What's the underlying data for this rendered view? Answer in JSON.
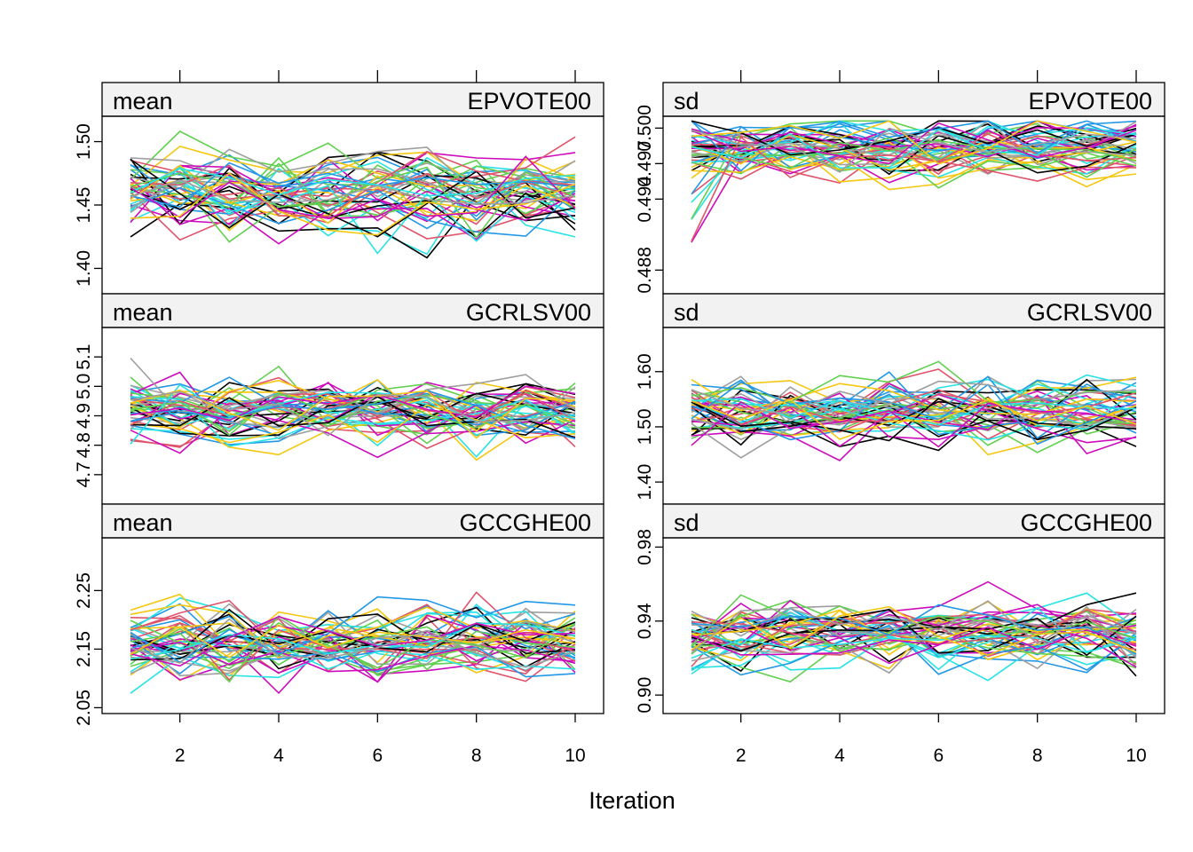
{
  "chart_data": {
    "type": "line",
    "xlabel": "Iteration",
    "x_ticks": [
      2,
      4,
      6,
      8,
      10
    ],
    "x_range": [
      1,
      10
    ],
    "grid": false,
    "series_colors": [
      "#000000",
      "#DF536B",
      "#61D04F",
      "#2297E6",
      "#28E2E5",
      "#CD0BBC",
      "#F5C710",
      "#9E9E9E"
    ],
    "panels": [
      {
        "id": "mean-epvote00",
        "stat": "mean",
        "variable": "EPVOTE00",
        "ylim": [
          1.38,
          1.52
        ],
        "y_ticks": [
          {
            "v": 1.4,
            "label": "1.40"
          },
          {
            "v": 1.45,
            "label": "1.45"
          },
          {
            "v": 1.5,
            "label": "1.50"
          }
        ],
        "center": 1.458,
        "spread": 0.018
      },
      {
        "id": "sd-epvote00",
        "stat": "sd",
        "variable": "EPVOTE00",
        "ylim": [
          0.486,
          0.501
        ],
        "y_ticks": [
          {
            "v": 0.488,
            "label": "0.488"
          },
          {
            "v": 0.494,
            "label": "0.494"
          },
          {
            "v": 0.497,
            "label": "0.497"
          },
          {
            "v": 0.5,
            "label": "0.500"
          }
        ],
        "center": 0.4983,
        "spread": 0.0014
      },
      {
        "id": "mean-gcrlsv00",
        "stat": "mean",
        "variable": "GCRLSV00",
        "ylim": [
          4.6,
          5.2
        ],
        "y_ticks": [
          {
            "v": 4.7,
            "label": "4.7"
          },
          {
            "v": 4.8,
            "label": "4.8"
          },
          {
            "v": 4.9,
            "label": "4.9"
          },
          {
            "v": 5.0,
            "label": "5.0"
          },
          {
            "v": 5.1,
            "label": "5.1"
          }
        ],
        "center": 4.915,
        "spread": 0.065
      },
      {
        "id": "sd-gcrlsv00",
        "stat": "sd",
        "variable": "GCRLSV00",
        "ylim": [
          1.36,
          1.68
        ],
        "y_ticks": [
          {
            "v": 1.4,
            "label": "1.40"
          },
          {
            "v": 1.5,
            "label": "1.50"
          },
          {
            "v": 1.6,
            "label": "1.60"
          }
        ],
        "center": 1.53,
        "spread": 0.035
      },
      {
        "id": "mean-gccghe00",
        "stat": "mean",
        "variable": "GCCGHE00",
        "ylim": [
          2.04,
          2.34
        ],
        "y_ticks": [
          {
            "v": 2.05,
            "label": "2.05"
          },
          {
            "v": 2.15,
            "label": "2.15"
          },
          {
            "v": 2.25,
            "label": "2.25"
          }
        ],
        "center": 2.16,
        "spread": 0.035
      },
      {
        "id": "sd-gccghe00",
        "stat": "sd",
        "variable": "GCCGHE00",
        "ylim": [
          0.89,
          0.985
        ],
        "y_ticks": [
          {
            "v": 0.9,
            "label": "0.90"
          },
          {
            "v": 0.94,
            "label": "0.94"
          },
          {
            "v": 0.98,
            "label": "0.98"
          }
        ],
        "center": 0.933,
        "spread": 0.011
      }
    ]
  }
}
